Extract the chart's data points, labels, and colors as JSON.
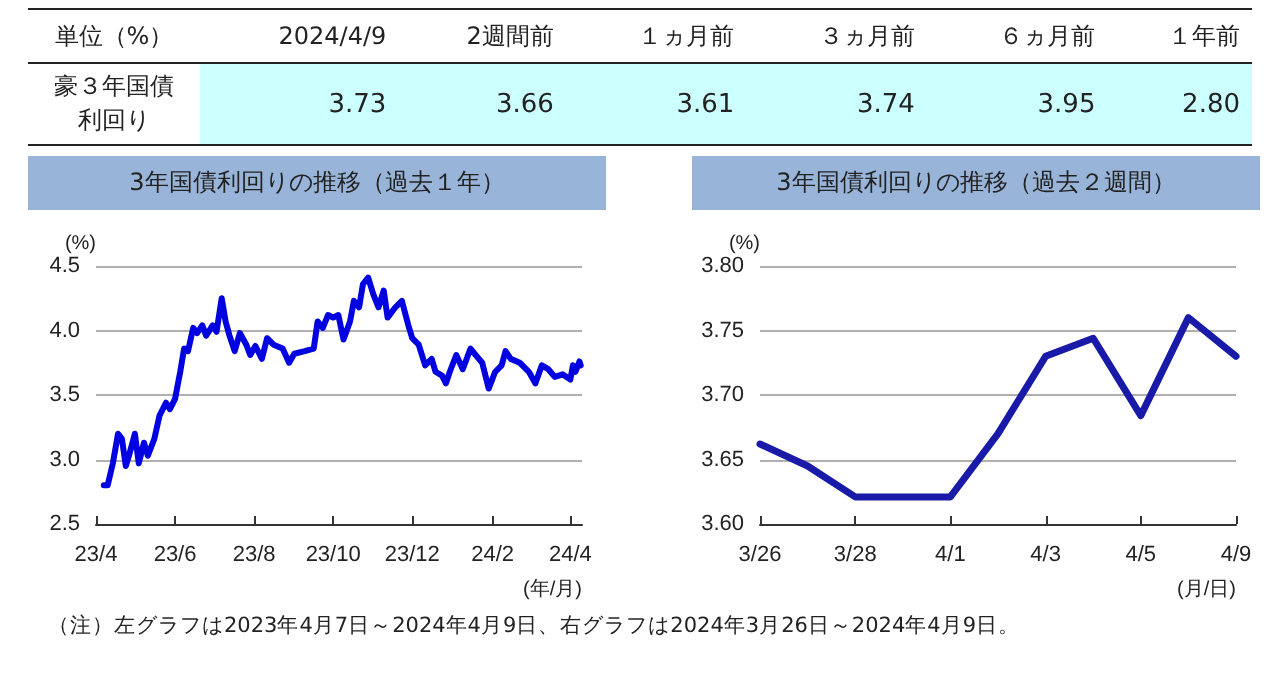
{
  "chart_data": [
    {
      "type": "other",
      "title": "単位（%）",
      "ylabel": "豪３年国債利回り",
      "categories": [
        "2024/4/9",
        "2週間前",
        "１ヵ月前",
        "３ヵ月前",
        "６ヵ月前",
        "１年前"
      ],
      "values": [
        3.73,
        3.66,
        3.61,
        3.74,
        3.95,
        2.8
      ],
      "value_labels": [
        "3.73",
        "3.66",
        "3.61",
        "3.74",
        "3.95",
        "2.80"
      ]
    },
    {
      "type": "line",
      "title": "3年国債利回りの推移（過去１年）",
      "xlabel": "(年/月)",
      "ylabel": "(%)",
      "x": [
        "2023-04-07",
        "2023-04-10",
        "2023-04-14",
        "2023-04-18",
        "2023-04-21",
        "2023-04-24",
        "2023-04-27",
        "2023-05-01",
        "2023-05-04",
        "2023-05-08",
        "2023-05-11",
        "2023-05-16",
        "2023-05-20",
        "2023-05-25",
        "2023-05-28",
        "2023-06-01",
        "2023-06-05",
        "2023-06-08",
        "2023-06-11",
        "2023-06-15",
        "2023-06-18",
        "2023-06-22",
        "2023-06-25",
        "2023-06-30",
        "2023-07-03",
        "2023-07-07",
        "2023-07-10",
        "2023-07-13",
        "2023-07-17",
        "2023-07-21",
        "2023-07-26",
        "2023-07-29",
        "2023-08-02",
        "2023-08-07",
        "2023-08-11",
        "2023-08-16",
        "2023-08-23",
        "2023-08-28",
        "2023-09-01",
        "2023-09-09",
        "2023-09-16",
        "2023-09-19",
        "2023-09-23",
        "2023-09-27",
        "2023-10-01",
        "2023-10-05",
        "2023-10-09",
        "2023-10-14",
        "2023-10-17",
        "2023-10-21",
        "2023-10-24",
        "2023-10-28",
        "2023-11-01",
        "2023-11-05",
        "2023-11-09",
        "2023-11-12",
        "2023-11-18",
        "2023-11-23",
        "2023-11-28",
        "2023-12-01",
        "2023-12-06",
        "2023-12-11",
        "2023-12-16",
        "2023-12-19",
        "2023-12-24",
        "2023-12-27",
        "2023-12-30",
        "2024-01-04",
        "2024-01-09",
        "2024-01-15",
        "2024-01-19",
        "2024-01-24",
        "2024-01-29",
        "2024-02-03",
        "2024-02-08",
        "2024-02-11",
        "2024-02-15",
        "2024-02-22",
        "2024-02-29",
        "2024-03-05",
        "2024-03-10",
        "2024-03-15",
        "2024-03-20",
        "2024-03-26",
        "2024-04-01",
        "2024-04-03",
        "2024-04-05",
        "2024-04-08",
        "2024-04-09"
      ],
      "series": [
        {
          "color": "#0000e0",
          "values": [
            2.8,
            2.8,
            2.97,
            3.2,
            3.16,
            2.95,
            3.05,
            3.2,
            2.97,
            3.13,
            3.03,
            3.16,
            3.34,
            3.44,
            3.39,
            3.47,
            3.68,
            3.86,
            3.84,
            4.02,
            3.98,
            4.04,
            3.96,
            4.04,
            3.99,
            4.25,
            4.07,
            3.96,
            3.84,
            3.98,
            3.89,
            3.81,
            3.88,
            3.78,
            3.94,
            3.89,
            3.86,
            3.75,
            3.82,
            3.84,
            3.86,
            4.07,
            4.02,
            4.12,
            4.1,
            4.12,
            3.93,
            4.07,
            4.23,
            4.18,
            4.36,
            4.41,
            4.28,
            4.18,
            4.31,
            4.1,
            4.18,
            4.23,
            4.04,
            3.94,
            3.89,
            3.73,
            3.78,
            3.68,
            3.65,
            3.59,
            3.68,
            3.81,
            3.7,
            3.86,
            3.81,
            3.75,
            3.55,
            3.68,
            3.73,
            3.84,
            3.78,
            3.75,
            3.68,
            3.59,
            3.73,
            3.7,
            3.64,
            3.66,
            3.62,
            3.73,
            3.68,
            3.76,
            3.73
          ]
        }
      ],
      "xlim": [
        "2023-04-01",
        "2024-04-10"
      ],
      "xticks": [
        {
          "value": "2023-04-01",
          "label": "23/4"
        },
        {
          "value": "2023-06-01",
          "label": "23/6"
        },
        {
          "value": "2023-08-01",
          "label": "23/8"
        },
        {
          "value": "2023-10-01",
          "label": "23/10"
        },
        {
          "value": "2023-12-01",
          "label": "23/12"
        },
        {
          "value": "2024-02-01",
          "label": "24/2"
        },
        {
          "value": "2024-04-01",
          "label": "24/4"
        }
      ],
      "ylim": [
        2.5,
        4.5
      ],
      "yticks": [
        {
          "value": 2.5,
          "label": "2.5"
        },
        {
          "value": 3,
          "label": "3.0"
        },
        {
          "value": 3.5,
          "label": "3.5"
        },
        {
          "value": 4,
          "label": "4.0"
        },
        {
          "value": 4.5,
          "label": "4.5"
        }
      ],
      "grid": "y",
      "marker": "none",
      "line_style": "solid",
      "annotations": [
        "（注）左グラフは2023年4月7日～2024年4月9日、右グラフは2024年3月26日～2024年4月9日。"
      ]
    },
    {
      "type": "line",
      "title": "3年国債利回りの推移（過去２週間）",
      "xlabel": "(月/日)",
      "ylabel": "(%)",
      "categories": [
        "3/26",
        null,
        "3/28",
        null,
        "4/1",
        null,
        "4/3",
        null,
        "4/5",
        null,
        "4/9"
      ],
      "series": [
        {
          "color": "#1a1aa8",
          "values": [
            3.662,
            3.645,
            3.621,
            3.621,
            3.621,
            3.67,
            3.73,
            3.744,
            3.684,
            3.76,
            3.73
          ]
        }
      ],
      "ylim": [
        3.6,
        3.8
      ],
      "yticks": [
        {
          "value": 3.6,
          "label": "3.60"
        },
        {
          "value": 3.65,
          "label": "3.65"
        },
        {
          "value": 3.7,
          "label": "3.70"
        },
        {
          "value": 3.75,
          "label": "3.75"
        },
        {
          "value": 3.8,
          "label": "3.80"
        }
      ],
      "grid": "y",
      "marker": "none",
      "line_style": "solid"
    }
  ]
}
